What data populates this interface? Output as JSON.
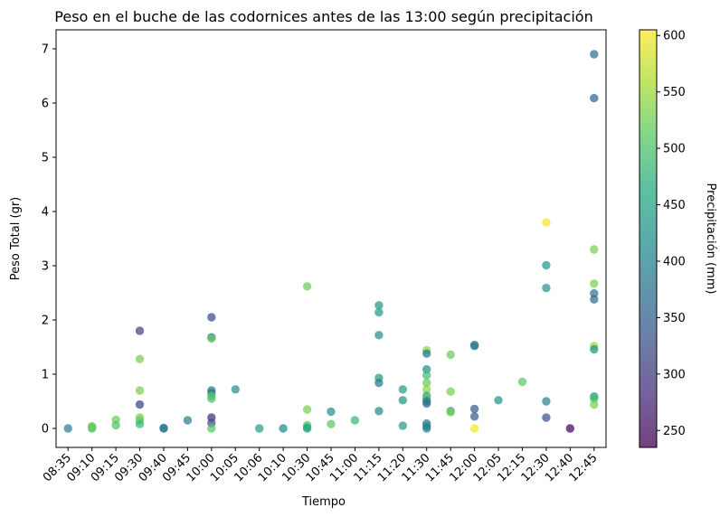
{
  "chart_data": {
    "type": "scatter",
    "title": "Peso en el buche de las codornices antes de las 13:00 según precipitación",
    "xlabel": "Tiempo",
    "ylabel": "Peso Total (gr)",
    "categories": [
      "08:35",
      "09:10",
      "09:15",
      "09:30",
      "09:40",
      "09:45",
      "10:00",
      "10:05",
      "10:06",
      "10:10",
      "10:30",
      "10:45",
      "11:00",
      "11:15",
      "11:20",
      "11:30",
      "11:45",
      "12:00",
      "12:05",
      "12:15",
      "12:30",
      "12:40",
      "12:45"
    ],
    "ylim": [
      -0.35,
      7.35
    ],
    "yticks": [
      "0",
      "1",
      "2",
      "3",
      "4",
      "5",
      "6",
      "7"
    ],
    "colorbar": {
      "label": "Precipitación (mm)",
      "range": [
        235,
        605
      ],
      "ticks": [
        "250",
        "300",
        "350",
        "400",
        "450",
        "500",
        "550",
        "600"
      ],
      "colormap": "viridis"
    },
    "grid": false,
    "points": [
      {
        "x": "08:35",
        "y": 0.0,
        "c": 390
      },
      {
        "x": "09:10",
        "y": 0.0,
        "c": 500
      },
      {
        "x": "09:10",
        "y": 0.02,
        "c": 510
      },
      {
        "x": "09:10",
        "y": 0.04,
        "c": 520
      },
      {
        "x": "09:15",
        "y": 0.06,
        "c": 500
      },
      {
        "x": "09:15",
        "y": 0.16,
        "c": 520
      },
      {
        "x": "09:30",
        "y": 1.8,
        "c": 310
      },
      {
        "x": "09:30",
        "y": 1.28,
        "c": 530
      },
      {
        "x": "09:30",
        "y": 0.7,
        "c": 530
      },
      {
        "x": "09:30",
        "y": 0.44,
        "c": 310
      },
      {
        "x": "09:30",
        "y": 0.2,
        "c": 530
      },
      {
        "x": "09:30",
        "y": 0.15,
        "c": 520
      },
      {
        "x": "09:30",
        "y": 0.08,
        "c": 480
      },
      {
        "x": "09:40",
        "y": 0.0,
        "c": 380
      },
      {
        "x": "09:40",
        "y": 0.01,
        "c": 390
      },
      {
        "x": "09:45",
        "y": 0.15,
        "c": 390
      },
      {
        "x": "10:00",
        "y": 2.05,
        "c": 320
      },
      {
        "x": "10:00",
        "y": 1.68,
        "c": 360
      },
      {
        "x": "10:00",
        "y": 1.66,
        "c": 520
      },
      {
        "x": "10:00",
        "y": 0.7,
        "c": 380
      },
      {
        "x": "10:00",
        "y": 0.65,
        "c": 370
      },
      {
        "x": "10:00",
        "y": 0.6,
        "c": 510
      },
      {
        "x": "10:00",
        "y": 0.55,
        "c": 500
      },
      {
        "x": "10:00",
        "y": 0.2,
        "c": 280
      },
      {
        "x": "10:00",
        "y": 0.1,
        "c": 320
      },
      {
        "x": "10:00",
        "y": 0.0,
        "c": 510
      },
      {
        "x": "10:05",
        "y": 0.72,
        "c": 420
      },
      {
        "x": "10:06",
        "y": 0.0,
        "c": 440
      },
      {
        "x": "10:10",
        "y": 0.0,
        "c": 410
      },
      {
        "x": "10:30",
        "y": 2.62,
        "c": 520
      },
      {
        "x": "10:30",
        "y": 0.35,
        "c": 530
      },
      {
        "x": "10:30",
        "y": 0.06,
        "c": 510
      },
      {
        "x": "10:30",
        "y": 0.02,
        "c": 470
      },
      {
        "x": "10:30",
        "y": 0.0,
        "c": 460
      },
      {
        "x": "10:45",
        "y": 0.31,
        "c": 420
      },
      {
        "x": "10:45",
        "y": 0.08,
        "c": 510
      },
      {
        "x": "11:00",
        "y": 0.15,
        "c": 480
      },
      {
        "x": "11:15",
        "y": 2.27,
        "c": 430
      },
      {
        "x": "11:15",
        "y": 2.14,
        "c": 440
      },
      {
        "x": "11:15",
        "y": 1.72,
        "c": 420
      },
      {
        "x": "11:15",
        "y": 0.93,
        "c": 440
      },
      {
        "x": "11:15",
        "y": 0.84,
        "c": 390
      },
      {
        "x": "11:15",
        "y": 0.32,
        "c": 410
      },
      {
        "x": "11:20",
        "y": 0.72,
        "c": 440
      },
      {
        "x": "11:20",
        "y": 0.52,
        "c": 430
      },
      {
        "x": "11:20",
        "y": 0.05,
        "c": 440
      },
      {
        "x": "11:30",
        "y": 1.44,
        "c": 540
      },
      {
        "x": "11:30",
        "y": 1.38,
        "c": 380
      },
      {
        "x": "11:30",
        "y": 1.09,
        "c": 420
      },
      {
        "x": "11:30",
        "y": 0.98,
        "c": 490
      },
      {
        "x": "11:30",
        "y": 0.84,
        "c": 520
      },
      {
        "x": "11:30",
        "y": 0.72,
        "c": 540
      },
      {
        "x": "11:30",
        "y": 0.6,
        "c": 450
      },
      {
        "x": "11:30",
        "y": 0.54,
        "c": 500
      },
      {
        "x": "11:30",
        "y": 0.5,
        "c": 380
      },
      {
        "x": "11:30",
        "y": 0.46,
        "c": 370
      },
      {
        "x": "11:30",
        "y": 0.09,
        "c": 380
      },
      {
        "x": "11:30",
        "y": 0.04,
        "c": 410
      },
      {
        "x": "11:30",
        "y": 0.0,
        "c": 390
      },
      {
        "x": "11:45",
        "y": 1.36,
        "c": 520
      },
      {
        "x": "11:45",
        "y": 0.68,
        "c": 530
      },
      {
        "x": "11:45",
        "y": 0.32,
        "c": 430
      },
      {
        "x": "11:45",
        "y": 0.3,
        "c": 530
      },
      {
        "x": "12:00",
        "y": 1.54,
        "c": 380
      },
      {
        "x": "12:00",
        "y": 1.52,
        "c": 390
      },
      {
        "x": "12:00",
        "y": 0.36,
        "c": 340
      },
      {
        "x": "12:00",
        "y": 0.22,
        "c": 350
      },
      {
        "x": "12:00",
        "y": 0.0,
        "c": 600
      },
      {
        "x": "12:05",
        "y": 0.52,
        "c": 430
      },
      {
        "x": "12:15",
        "y": 0.86,
        "c": 510
      },
      {
        "x": "12:30",
        "y": 3.8,
        "c": 600
      },
      {
        "x": "12:30",
        "y": 3.01,
        "c": 430
      },
      {
        "x": "12:30",
        "y": 2.59,
        "c": 430
      },
      {
        "x": "12:30",
        "y": 0.5,
        "c": 400
      },
      {
        "x": "12:30",
        "y": 0.2,
        "c": 330
      },
      {
        "x": "12:40",
        "y": 0.0,
        "c": 235
      },
      {
        "x": "12:45",
        "y": 6.9,
        "c": 370
      },
      {
        "x": "12:45",
        "y": 6.09,
        "c": 360
      },
      {
        "x": "12:45",
        "y": 3.3,
        "c": 530
      },
      {
        "x": "12:45",
        "y": 2.67,
        "c": 530
      },
      {
        "x": "12:45",
        "y": 2.49,
        "c": 380
      },
      {
        "x": "12:45",
        "y": 2.38,
        "c": 360
      },
      {
        "x": "12:45",
        "y": 1.52,
        "c": 550
      },
      {
        "x": "12:45",
        "y": 1.46,
        "c": 420
      },
      {
        "x": "12:45",
        "y": 0.59,
        "c": 440
      },
      {
        "x": "12:45",
        "y": 0.55,
        "c": 490
      },
      {
        "x": "12:45",
        "y": 0.44,
        "c": 530
      }
    ]
  }
}
